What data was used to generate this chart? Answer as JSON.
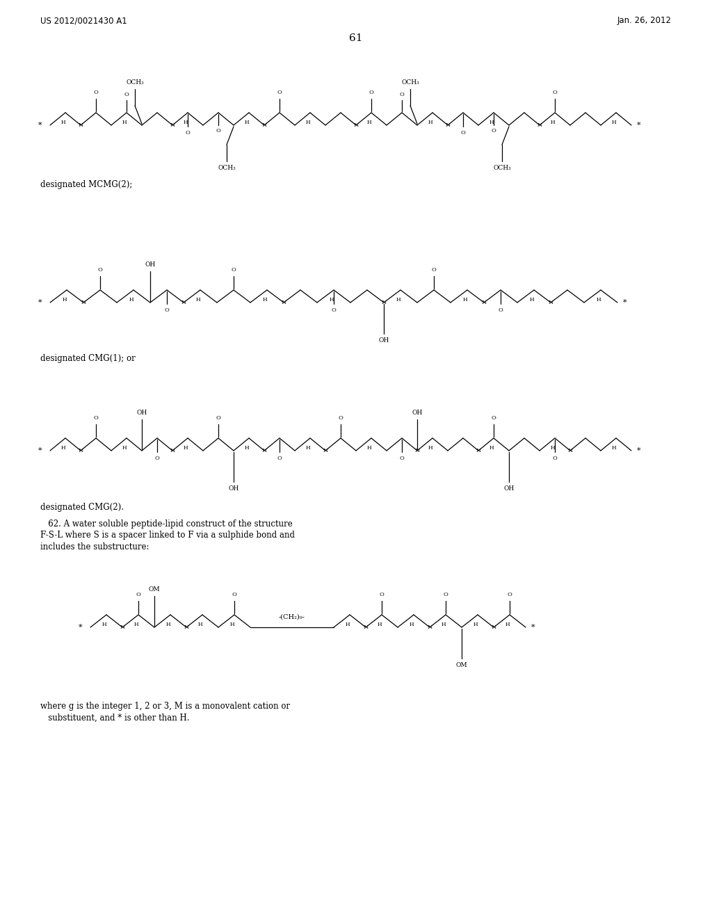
{
  "patent_number": "US 2012/0021430 A1",
  "patent_date": "Jan. 26, 2012",
  "page_number": "61",
  "label1": "designated MCMG(2);",
  "label2": "designated CMG(1); or",
  "label3": "designated CMG(2).",
  "para62_line1": "   62. A water soluble peptide-lipid construct of the structure",
  "para62_line2": "F-S-L where S is a spacer linked to F via a sulphide bond and",
  "para62_line3": "includes the substructure:",
  "footer1": "where g is the integer 1, 2 or 3, M is a monovalent cation or",
  "footer2": "   substituent, and * is other than H.",
  "bg": "#ffffff"
}
